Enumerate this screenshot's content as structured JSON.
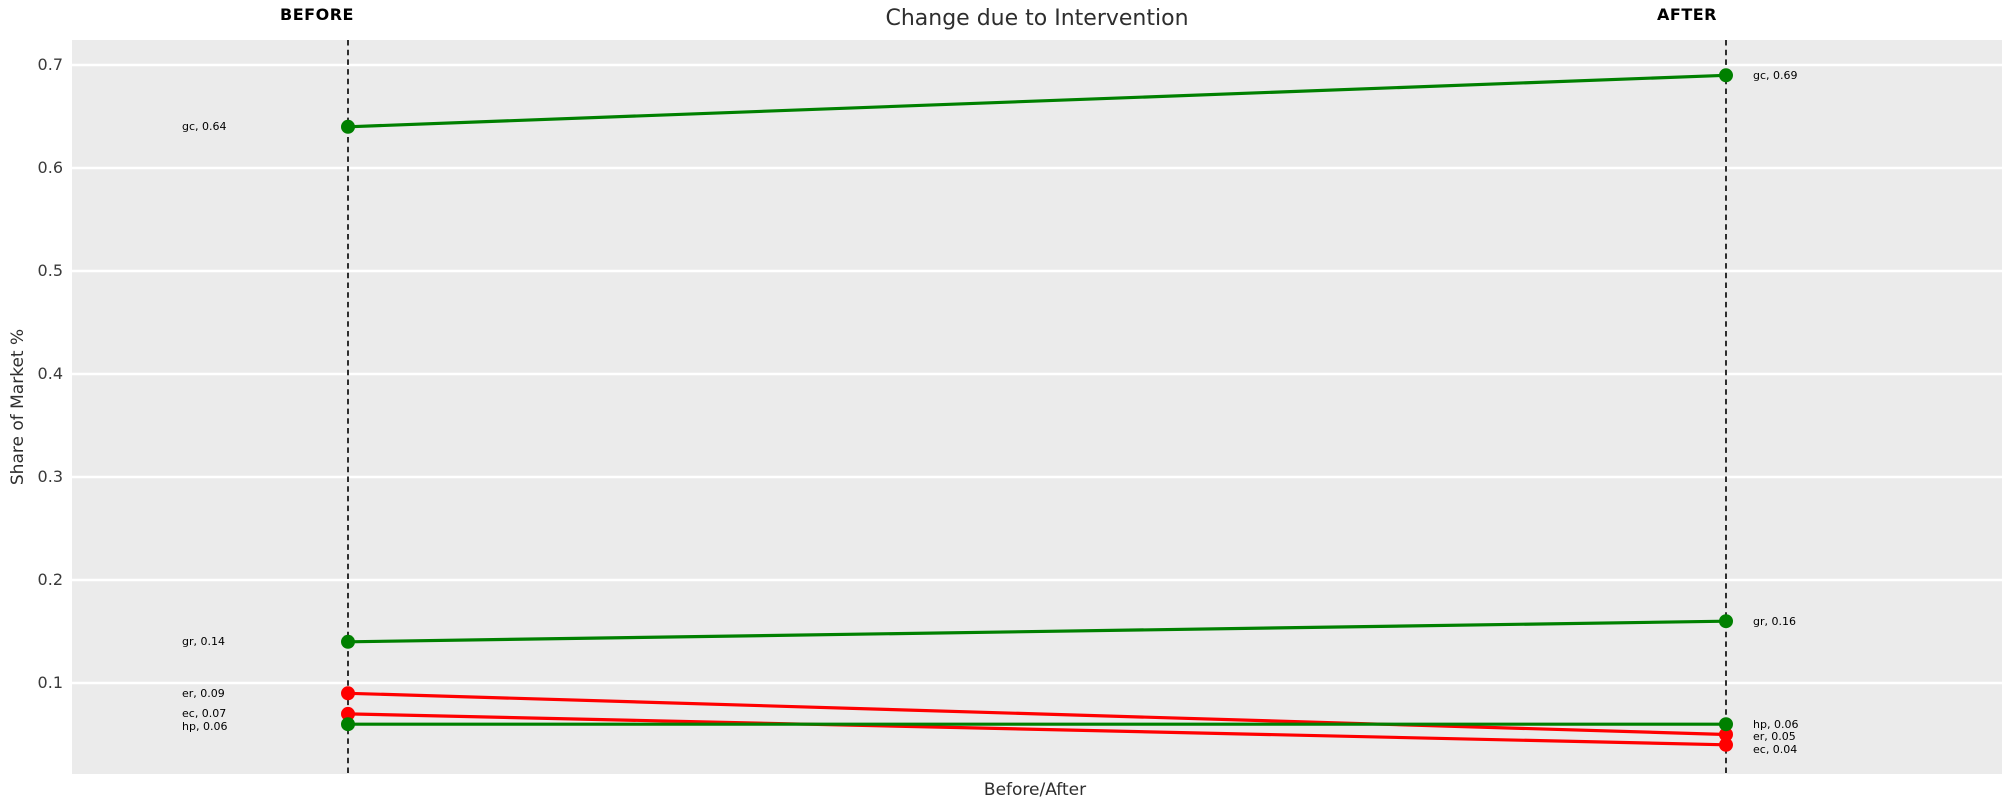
{
  "title": "Change due to Intervention",
  "xlabel": "Before/After",
  "ylabel": "Share of Market %",
  "columns": {
    "before": "BEFORE",
    "after": "AFTER"
  },
  "colors": {
    "increase": "#008000",
    "decrease": "#ff0000",
    "plot_background": "#ebebeb",
    "gridline": "#ffffff",
    "dashed_guide": "#1a1a1a",
    "text": "#2e2e2e"
  },
  "chart_data": {
    "type": "line",
    "subtype": "slopegraph",
    "title": "Change due to Intervention",
    "xlabel": "Before/After",
    "ylabel": "Share of Market %",
    "categories": [
      "BEFORE",
      "AFTER"
    ],
    "series": [
      {
        "name": "gc",
        "values": [
          0.64,
          0.69
        ],
        "color": "#008000",
        "point_labels": [
          "gc, 0.64",
          "gc, 0.69"
        ]
      },
      {
        "name": "gr",
        "values": [
          0.14,
          0.16
        ],
        "color": "#008000",
        "point_labels": [
          "gr, 0.14",
          "gr, 0.16"
        ]
      },
      {
        "name": "er",
        "values": [
          0.09,
          0.05
        ],
        "color": "#ff0000",
        "point_labels": [
          "er, 0.09",
          "er, 0.05"
        ]
      },
      {
        "name": "ec",
        "values": [
          0.07,
          0.04
        ],
        "color": "#ff0000",
        "point_labels": [
          "ec, 0.07",
          "ec, 0.04"
        ]
      },
      {
        "name": "hp",
        "values": [
          0.06,
          0.06
        ],
        "color": "#008000",
        "point_labels": [
          "hp, 0.06",
          "hp, 0.06"
        ]
      }
    ],
    "yticks": [
      0.1,
      0.2,
      0.3,
      0.4,
      0.5,
      0.6,
      0.7
    ],
    "ytick_labels": [
      "0.1",
      "0.2",
      "0.3",
      "0.4",
      "0.5",
      "0.6",
      "0.7"
    ],
    "ylim": [
      0.012,
      0.724
    ],
    "grid": "horizontal major gridlines, white on gray background",
    "guides": "vertical dashed black line at each category",
    "legend": "none"
  }
}
